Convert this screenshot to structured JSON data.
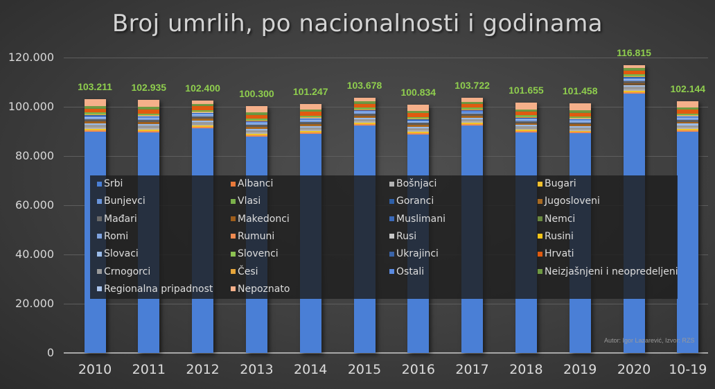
{
  "chart_data": {
    "type": "bar",
    "stacked": true,
    "title": "Broj umrlih, po nacionalnosti i godinama",
    "xlabel": "",
    "ylabel": "",
    "ylim": [
      0,
      120000
    ],
    "yticks": [
      "0",
      "20.000",
      "40.000",
      "60.000",
      "80.000",
      "100.000",
      "120.000"
    ],
    "grid": true,
    "legend_position": "inside-center",
    "categories": [
      "2010",
      "2011",
      "2012",
      "2013",
      "2014",
      "2015",
      "2016",
      "2017",
      "2018",
      "2019",
      "2020",
      "10-19"
    ],
    "totals": [
      103211,
      102935,
      102400,
      100300,
      101247,
      103678,
      100834,
      103722,
      101655,
      101458,
      116815,
      102144
    ],
    "total_labels": [
      "103.211",
      "102.935",
      "102.400",
      "100.300",
      "101.247",
      "103.678",
      "100.834",
      "103.722",
      "101.655",
      "101.458",
      "116.815",
      "102.144"
    ],
    "series": [
      {
        "name": "Srbi",
        "color": "#4a7fd6",
        "values": [
          86700,
          86400,
          88000,
          85600,
          86900,
          90100,
          86700,
          90000,
          87300,
          87000,
          102900,
          87700
        ]
      },
      {
        "name": "Bunjevci",
        "color": "#6a95dc",
        "values": [
          250,
          250,
          240,
          240,
          240,
          240,
          230,
          230,
          230,
          220,
          240,
          240
        ]
      },
      {
        "name": "Mađari",
        "color": "#8a8a8a",
        "values": [
          1000,
          950,
          900,
          900,
          880,
          860,
          850,
          850,
          820,
          800,
          900,
          880
        ]
      },
      {
        "name": "Romi",
        "color": "#7fa3e0",
        "values": [
          350,
          350,
          350,
          340,
          350,
          360,
          350,
          360,
          350,
          350,
          420,
          350
        ]
      },
      {
        "name": "Slovaci",
        "color": "#9bbcea",
        "values": [
          600,
          600,
          590,
          580,
          580,
          570,
          560,
          560,
          550,
          540,
          620,
          570
        ]
      },
      {
        "name": "Crnogorci",
        "color": "#9a9a9a",
        "values": [
          1000,
          980,
          960,
          950,
          940,
          930,
          920,
          910,
          900,
          880,
          1000,
          940
        ]
      },
      {
        "name": "Regionalna pripadnost",
        "color": "#aac4ec",
        "values": [
          150,
          150,
          150,
          150,
          150,
          150,
          150,
          150,
          150,
          150,
          170,
          150
        ]
      },
      {
        "name": "Albanci",
        "color": "#e8793a",
        "values": [
          150,
          150,
          150,
          150,
          150,
          150,
          150,
          150,
          150,
          150,
          160,
          150
        ]
      },
      {
        "name": "Vlasi",
        "color": "#7ab04a",
        "values": [
          500,
          500,
          480,
          470,
          470,
          470,
          460,
          460,
          450,
          450,
          500,
          470
        ]
      },
      {
        "name": "Makedonci",
        "color": "#9e5d1a",
        "values": [
          350,
          340,
          330,
          320,
          320,
          320,
          310,
          310,
          300,
          300,
          340,
          320
        ]
      },
      {
        "name": "Rumuni",
        "color": "#ef8a50",
        "values": [
          600,
          600,
          580,
          560,
          560,
          560,
          540,
          540,
          530,
          520,
          600,
          560
        ]
      },
      {
        "name": "Slovenci",
        "color": "#8cc152",
        "values": [
          100,
          100,
          100,
          100,
          100,
          100,
          100,
          100,
          100,
          100,
          110,
          100
        ]
      },
      {
        "name": "Česi",
        "color": "#e6a53a",
        "values": [
          150,
          150,
          150,
          150,
          150,
          150,
          150,
          150,
          150,
          150,
          160,
          150
        ]
      },
      {
        "name": "Nepoznato",
        "color": "#f5b08a",
        "values": [
          2800,
          2900,
          1100,
          2500,
          2300,
          1500,
          2400,
          1600,
          2600,
          2900,
          1000,
          2300
        ]
      },
      {
        "name": "Bošnjaci",
        "color": "#b4b4b4",
        "values": [
          500,
          520,
          500,
          500,
          500,
          500,
          500,
          510,
          510,
          500,
          580,
          510
        ]
      },
      {
        "name": "Goranci",
        "color": "#2e5fa6",
        "values": [
          60,
          60,
          60,
          60,
          60,
          60,
          60,
          60,
          60,
          60,
          70,
          60
        ]
      },
      {
        "name": "Muslimani",
        "color": "#3b6ab8",
        "values": [
          300,
          300,
          300,
          300,
          300,
          300,
          290,
          290,
          290,
          290,
          330,
          300
        ]
      },
      {
        "name": "Rusi",
        "color": "#c8c8c8",
        "values": [
          60,
          60,
          60,
          60,
          60,
          60,
          60,
          60,
          60,
          60,
          70,
          60
        ]
      },
      {
        "name": "Ukrajinci",
        "color": "#3a64a8",
        "values": [
          100,
          100,
          100,
          100,
          100,
          100,
          100,
          100,
          100,
          100,
          110,
          100
        ]
      },
      {
        "name": "Ostali",
        "color": "#5a8ae0",
        "values": [
          300,
          300,
          300,
          300,
          300,
          300,
          300,
          300,
          300,
          300,
          320,
          300
        ]
      },
      {
        "name": "Bugari",
        "color": "#f2c12e",
        "values": [
          350,
          340,
          330,
          320,
          320,
          310,
          300,
          300,
          290,
          290,
          330,
          320
        ]
      },
      {
        "name": "Jugosloveni",
        "color": "#a86a22",
        "values": [
          450,
          440,
          430,
          420,
          410,
          400,
          390,
          380,
          370,
          360,
          400,
          400
        ]
      },
      {
        "name": "Nemci",
        "color": "#6a8a40",
        "values": [
          100,
          100,
          100,
          100,
          100,
          100,
          100,
          100,
          100,
          100,
          110,
          100
        ]
      },
      {
        "name": "Rusini",
        "color": "#f5c518",
        "values": [
          150,
          150,
          150,
          150,
          150,
          150,
          150,
          150,
          150,
          150,
          160,
          150
        ]
      },
      {
        "name": "Hrvati",
        "color": "#e05a10",
        "values": [
          1700,
          1680,
          1650,
          1620,
          1600,
          1580,
          1550,
          1540,
          1500,
          1480,
          1650,
          1600
        ]
      },
      {
        "name": "Neizjašnjeni i neopredeljeni",
        "color": "#6e9a42",
        "values": [
          800,
          800,
          780,
          770,
          760,
          770,
          760,
          780,
          770,
          760,
          820,
          780
        ]
      }
    ]
  },
  "title": "Broj umrlih, po nacionalnosti i godinama",
  "author_note": "Autor: Igor Lazarević, Izvor: RZS",
  "legend": {
    "columns": [
      [
        "Srbi",
        "Bunjevci",
        "Mađari",
        "Romi",
        "Slovaci",
        "Crnogorci",
        "Regionalna pripadnost"
      ],
      [
        "Albanci",
        "Vlasi",
        "Makedonci",
        "Rumuni",
        "Slovenci",
        "Česi",
        "Nepoznato"
      ],
      [
        "Bošnjaci",
        "Goranci",
        "Muslimani",
        "Rusi",
        "Ukrajinci",
        "Ostali"
      ],
      [
        "Bugari",
        "Jugosloveni",
        "Nemci",
        "Rusini",
        "Hrvati",
        "Neizjašnjeni i neopredeljeni"
      ]
    ]
  }
}
